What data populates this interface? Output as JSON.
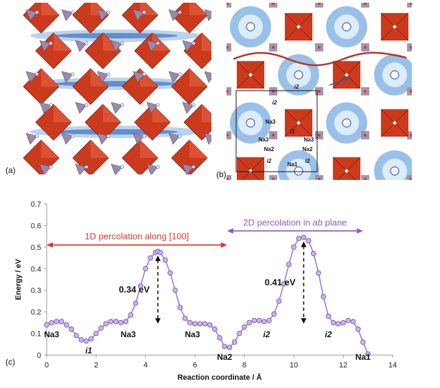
{
  "panels": {
    "a": {
      "label": "(a)"
    },
    "b": {
      "label": "(b)",
      "site_labels": [
        "i2",
        "i2",
        "Na3",
        "i1",
        "Na3",
        "Na3",
        "Na2",
        "Na2",
        "i2",
        "Na1",
        "i2"
      ]
    },
    "c": {
      "label": "(c)"
    }
  },
  "colors": {
    "octahedra": "#cc3a1e",
    "tetrahedra": "#9a8aa8",
    "isosurface": "#7fb0e0",
    "curve": "#9b7bc6",
    "arrow_1d": "#d9392b",
    "arrow_2d": "#8b5fbf",
    "axis": "#999999"
  },
  "chart_data": {
    "type": "line",
    "xlabel": "Reaction coordinate / Å",
    "ylabel": "Energy / eV",
    "xlim": [
      0,
      14
    ],
    "ylim": [
      0,
      0.7
    ],
    "xticks": [
      0,
      2,
      4,
      6,
      8,
      10,
      12,
      14
    ],
    "yticks": [
      0,
      0.1,
      0.2,
      0.3,
      0.4,
      0.5,
      0.6,
      0.7
    ],
    "grid": false,
    "series": [
      {
        "x": [
          0,
          0.2,
          0.4,
          0.6,
          0.8,
          1.0,
          1.2,
          1.4,
          1.6,
          1.8,
          2.0,
          2.2,
          2.4,
          2.6,
          2.8,
          3.0,
          3.2,
          3.4,
          3.6,
          3.8,
          4.0,
          4.2,
          4.4,
          4.5,
          4.6,
          4.8,
          5.0,
          5.2,
          5.4,
          5.6,
          5.8,
          6.0,
          6.2,
          6.4,
          6.6,
          6.8,
          7.0,
          7.2,
          7.4,
          7.6,
          7.8,
          8.0,
          8.2,
          8.4,
          8.6,
          8.8,
          9.0,
          9.2,
          9.4,
          9.6,
          9.8,
          10.0,
          10.2,
          10.4,
          10.6,
          10.8,
          11.0,
          11.2,
          11.4,
          11.6,
          11.8,
          12.0,
          12.2,
          12.4,
          12.6,
          12.8,
          13.0
        ],
        "values": [
          0.14,
          0.15,
          0.155,
          0.155,
          0.14,
          0.12,
          0.09,
          0.07,
          0.065,
          0.075,
          0.1,
          0.125,
          0.145,
          0.155,
          0.155,
          0.15,
          0.155,
          0.185,
          0.24,
          0.32,
          0.4,
          0.45,
          0.475,
          0.48,
          0.475,
          0.44,
          0.38,
          0.3,
          0.22,
          0.17,
          0.15,
          0.145,
          0.145,
          0.145,
          0.14,
          0.12,
          0.08,
          0.04,
          0.035,
          0.06,
          0.1,
          0.13,
          0.15,
          0.16,
          0.16,
          0.155,
          0.16,
          0.19,
          0.25,
          0.33,
          0.42,
          0.5,
          0.54,
          0.545,
          0.53,
          0.47,
          0.38,
          0.27,
          0.18,
          0.15,
          0.145,
          0.15,
          0.16,
          0.155,
          0.12,
          0.06,
          0.005
        ]
      }
    ],
    "site_labels": [
      {
        "text": "Na3",
        "x": 0.2,
        "y": 0.095,
        "italic": false
      },
      {
        "text": "i1",
        "x": 1.7,
        "y": 0.02,
        "italic": true
      },
      {
        "text": "Na3",
        "x": 3.3,
        "y": 0.095,
        "italic": false
      },
      {
        "text": "Na3",
        "x": 5.9,
        "y": 0.095,
        "italic": false
      },
      {
        "text": "Na2",
        "x": 7.2,
        "y": -0.01,
        "italic": false
      },
      {
        "text": "i2",
        "x": 8.9,
        "y": 0.095,
        "italic": true
      },
      {
        "text": "i2",
        "x": 11.4,
        "y": 0.095,
        "italic": true
      },
      {
        "text": "Na1",
        "x": 12.8,
        "y": -0.01,
        "italic": false
      }
    ],
    "barriers": [
      {
        "text": "0.34 eV",
        "x": 4.5,
        "y_top": 0.48,
        "y_bottom": 0.145
      },
      {
        "text": "0.41 eV",
        "x": 10.4,
        "y_top": 0.545,
        "y_bottom": 0.145
      }
    ],
    "range_arrows": [
      {
        "text": "1D percolation along [100]",
        "x_start": 0,
        "x_end": 7.3,
        "y": 0.51,
        "color": "#d9392b"
      },
      {
        "text_prefix": "2D percolation in ",
        "text_italic": "ab",
        "text_suffix": " plane",
        "x_start": 7.3,
        "x_end": 12.8,
        "y": 0.575,
        "color": "#8b5fbf"
      }
    ]
  }
}
